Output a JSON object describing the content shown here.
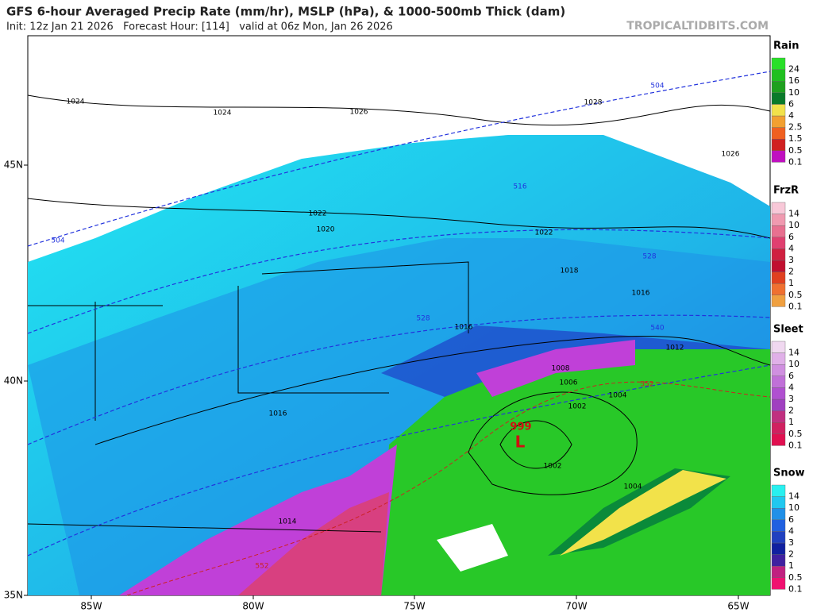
{
  "header": {
    "title": "GFS 6-hour Averaged Precip Rate (mm/hr), MSLP (hPa), & 1000-500mb Thick (dam)",
    "subtitle": "Init: 12z Jan 21 2026   Forecast Hour: [114]   valid at 06z Mon, Jan 26 2026",
    "watermark": "TROPICALTIDBITS.COM"
  },
  "map": {
    "lon_labels": [
      "85W",
      "80W",
      "75W",
      "70W",
      "65W"
    ],
    "lat_labels": [
      "45N",
      "40N",
      "35N"
    ],
    "contour_labels": [
      "1024",
      "1024",
      "1026",
      "1028",
      "1026",
      "504",
      "1022",
      "1020",
      "516",
      "1022",
      "504",
      "528",
      "1018",
      "1016",
      "528",
      "1016",
      "540",
      "1012",
      "1008",
      "1006",
      "1004",
      "552",
      "1002",
      "1016",
      "999",
      "L",
      "1002",
      "1004",
      "1014",
      "552"
    ]
  },
  "legend": [
    {
      "title": "Rain",
      "labels": [
        "24",
        "16",
        "10",
        "6",
        "4",
        "2.5",
        "1.5",
        "0.5",
        "0.1"
      ]
    },
    {
      "title": "FrzR",
      "labels": [
        "14",
        "10",
        "6",
        "4",
        "3",
        "2",
        "1",
        "0.5",
        "0.1"
      ]
    },
    {
      "title": "Sleet",
      "labels": [
        "14",
        "10",
        "6",
        "4",
        "3",
        "2",
        "1",
        "0.5",
        "0.1"
      ]
    },
    {
      "title": "Snow",
      "labels": [
        "14",
        "10",
        "6",
        "4",
        "3",
        "2",
        "1",
        "0.5",
        "0.1"
      ]
    }
  ]
}
